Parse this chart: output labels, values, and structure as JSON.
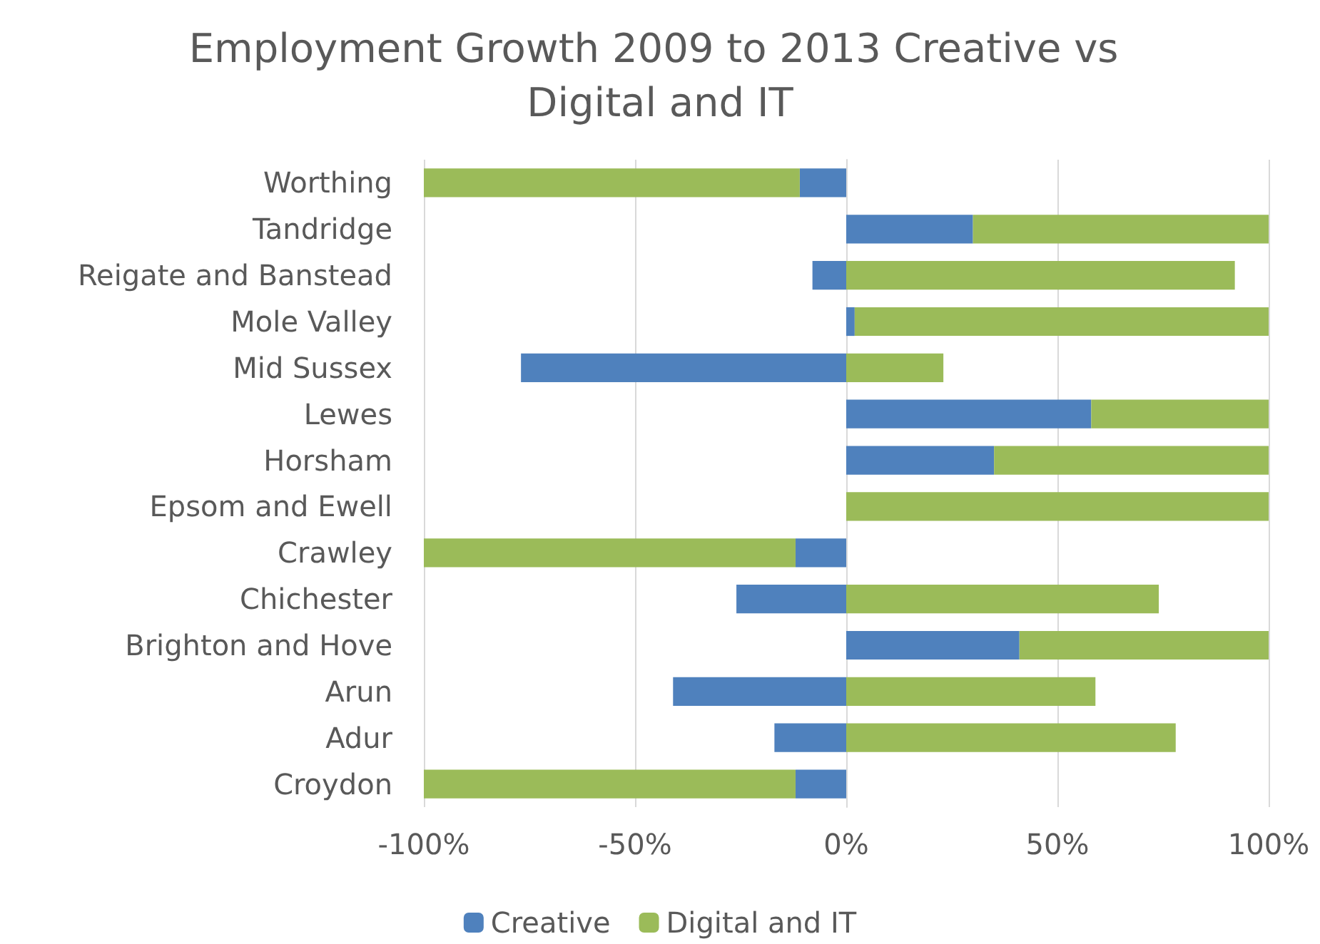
{
  "chart_data": {
    "type": "bar",
    "title": "Employment Growth 2009 to 2013 Creative vs Digital and IT",
    "orientation": "horizontal",
    "stacked": true,
    "categories": [
      "Worthing",
      "Tandridge",
      "Reigate and Banstead",
      "Mole Valley",
      "Mid Sussex",
      "Lewes",
      "Horsham",
      "Epsom and Ewell",
      "Crawley",
      "Chichester",
      "Brighton and Hove",
      "Arun",
      "Adur",
      "Croydon"
    ],
    "series": [
      {
        "name": "Creative",
        "color": "#4f81bd",
        "values": [
          -11,
          30,
          -8,
          2,
          -77,
          58,
          35,
          0,
          -12,
          -26,
          41,
          -41,
          -17,
          -12
        ]
      },
      {
        "name": "Digital and IT",
        "color": "#9bbb59",
        "values": [
          -89,
          70,
          92,
          98,
          23,
          42,
          65,
          100,
          -88,
          74,
          59,
          59,
          78,
          -88
        ]
      }
    ],
    "xlim": [
      -100,
      100
    ],
    "xticks": [
      {
        "value": -100,
        "label": "-100%"
      },
      {
        "value": -50,
        "label": "-50%"
      },
      {
        "value": 0,
        "label": "0%"
      },
      {
        "value": 50,
        "label": "50%"
      },
      {
        "value": 100,
        "label": "100%"
      }
    ],
    "grid": "x",
    "legend": "bottom"
  }
}
